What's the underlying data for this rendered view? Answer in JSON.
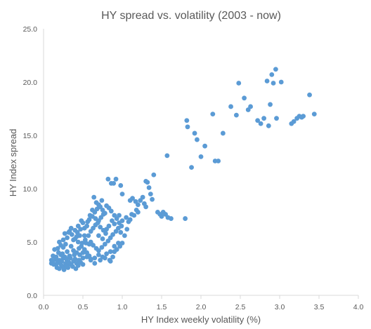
{
  "chart_data": {
    "type": "scatter",
    "title": "HY spread vs. volatility (2003 - now)",
    "xlabel": "HY Index weekly volatility (%)",
    "ylabel": "HY Index spread",
    "xlim": [
      0,
      4
    ],
    "ylim": [
      0,
      25
    ],
    "x_ticks": [
      "0.0",
      "0.5",
      "1.0",
      "1.5",
      "2.0",
      "2.5",
      "3.0",
      "3.5",
      "4.0"
    ],
    "y_ticks": [
      "0.0",
      "5.0",
      "10.0",
      "15.0",
      "20.0",
      "25.0"
    ],
    "grid": false,
    "legend": "none",
    "marker_color": "#5B9BD5",
    "series": [
      {
        "points": [
          [
            0.18,
            3.1
          ],
          [
            0.2,
            3.3
          ],
          [
            0.22,
            2.9
          ],
          [
            0.25,
            3.5
          ],
          [
            0.28,
            3.0
          ],
          [
            0.3,
            2.8
          ],
          [
            0.15,
            3.4
          ],
          [
            0.17,
            2.6
          ],
          [
            0.12,
            3.2
          ],
          [
            0.1,
            3.0
          ],
          [
            0.2,
            2.5
          ],
          [
            0.24,
            2.7
          ],
          [
            0.32,
            3.1
          ],
          [
            0.35,
            2.9
          ],
          [
            0.38,
            3.2
          ],
          [
            0.27,
            3.6
          ],
          [
            0.22,
            3.8
          ],
          [
            0.19,
            4.0
          ],
          [
            0.14,
            4.3
          ],
          [
            0.3,
            4.1
          ],
          [
            0.33,
            3.7
          ],
          [
            0.4,
            3.4
          ],
          [
            0.42,
            3.0
          ],
          [
            0.45,
            3.3
          ],
          [
            0.25,
            4.5
          ],
          [
            0.28,
            4.8
          ],
          [
            0.2,
            5.0
          ],
          [
            0.35,
            4.6
          ],
          [
            0.38,
            4.2
          ],
          [
            0.42,
            4.0
          ],
          [
            0.46,
            3.8
          ],
          [
            0.5,
            3.5
          ],
          [
            0.3,
            5.4
          ],
          [
            0.27,
            5.8
          ],
          [
            0.33,
            6.0
          ],
          [
            0.36,
            5.7
          ],
          [
            0.4,
            5.3
          ],
          [
            0.44,
            5.0
          ],
          [
            0.48,
            4.6
          ],
          [
            0.52,
            4.3
          ],
          [
            0.55,
            4.0
          ],
          [
            0.58,
            3.7
          ],
          [
            0.6,
            3.4
          ],
          [
            0.25,
            5.2
          ],
          [
            0.22,
            4.7
          ],
          [
            0.18,
            4.4
          ],
          [
            0.12,
            3.7
          ],
          [
            0.1,
            3.3
          ],
          [
            0.16,
            2.9
          ],
          [
            0.29,
            3.4
          ],
          [
            0.31,
            2.6
          ],
          [
            0.37,
            2.7
          ],
          [
            0.41,
            2.5
          ],
          [
            0.44,
            2.8
          ],
          [
            0.47,
            3.1
          ],
          [
            0.5,
            2.9
          ],
          [
            0.26,
            2.4
          ],
          [
            0.23,
            3.2
          ],
          [
            0.34,
            3.5
          ],
          [
            0.39,
            3.8
          ],
          [
            0.45,
            4.4
          ],
          [
            0.49,
            4.9
          ],
          [
            0.53,
            5.2
          ],
          [
            0.57,
            5.6
          ],
          [
            0.6,
            6.0
          ],
          [
            0.63,
            6.3
          ],
          [
            0.66,
            6.6
          ],
          [
            0.7,
            7.0
          ],
          [
            0.73,
            7.3
          ],
          [
            0.76,
            7.6
          ],
          [
            0.55,
            6.5
          ],
          [
            0.5,
            6.8
          ],
          [
            0.47,
            6.2
          ],
          [
            0.43,
            5.9
          ],
          [
            0.58,
            7.1
          ],
          [
            0.62,
            7.4
          ],
          [
            0.65,
            7.8
          ],
          [
            0.68,
            8.1
          ],
          [
            0.72,
            8.3
          ],
          [
            0.75,
            8.0
          ],
          [
            0.78,
            7.7
          ],
          [
            0.8,
            8.4
          ],
          [
            0.83,
            8.2
          ],
          [
            0.86,
            7.9
          ],
          [
            0.9,
            7.5
          ],
          [
            0.93,
            7.2
          ],
          [
            0.96,
            6.8
          ],
          [
            0.99,
            6.5
          ],
          [
            0.64,
            9.2
          ],
          [
            0.67,
            8.7
          ],
          [
            0.7,
            8.5
          ],
          [
            0.74,
            8.9
          ],
          [
            0.6,
            5.0
          ],
          [
            0.63,
            4.7
          ],
          [
            0.67,
            4.4
          ],
          [
            0.7,
            4.2
          ],
          [
            0.74,
            4.5
          ],
          [
            0.78,
            4.8
          ],
          [
            0.82,
            5.1
          ],
          [
            0.85,
            5.4
          ],
          [
            0.88,
            5.7
          ],
          [
            0.92,
            6.0
          ],
          [
            0.95,
            6.3
          ],
          [
            0.98,
            5.9
          ],
          [
            0.55,
            3.6
          ],
          [
            0.6,
            3.3
          ],
          [
            0.65,
            3.5
          ],
          [
            0.7,
            3.8
          ],
          [
            0.75,
            3.6
          ],
          [
            0.8,
            3.9
          ],
          [
            0.85,
            4.1
          ],
          [
            0.9,
            4.6
          ],
          [
            0.95,
            4.9
          ],
          [
            0.52,
            6.3
          ],
          [
            0.56,
            6.9
          ],
          [
            0.59,
            7.5
          ],
          [
            0.62,
            8.0
          ],
          [
            0.66,
            7.2
          ],
          [
            0.69,
            6.8
          ],
          [
            0.72,
            6.4
          ],
          [
            0.76,
            6.1
          ],
          [
            0.79,
            5.8
          ],
          [
            0.83,
            6.5
          ],
          [
            0.87,
            7.0
          ],
          [
            0.9,
            6.7
          ],
          [
            0.4,
            6.1
          ],
          [
            0.44,
            6.5
          ],
          [
            0.48,
            7.0
          ],
          [
            0.52,
            5.6
          ],
          [
            0.46,
            5.6
          ],
          [
            0.42,
            5.5
          ],
          [
            0.38,
            5.2
          ],
          [
            0.35,
            6.3
          ],
          [
            0.32,
            5.9
          ],
          [
            0.82,
            10.9
          ],
          [
            0.86,
            10.5
          ],
          [
            0.92,
            10.9
          ],
          [
            0.89,
            10.5
          ],
          [
            0.65,
            3.0
          ],
          [
            0.72,
            3.3
          ],
          [
            0.78,
            3.5
          ],
          [
            0.84,
            3.3
          ],
          [
            0.88,
            3.6
          ],
          [
            0.93,
            4.3
          ],
          [
            0.97,
            4.6
          ],
          [
            1.0,
            4.9
          ],
          [
            1.03,
            5.6
          ],
          [
            1.06,
            6.2
          ],
          [
            1.0,
            7.0
          ],
          [
            1.05,
            7.3
          ],
          [
            1.08,
            6.9
          ],
          [
            1.12,
            7.6
          ],
          [
            1.15,
            7.5
          ],
          [
            1.18,
            8.0
          ],
          [
            1.2,
            7.8
          ],
          [
            1.1,
            8.9
          ],
          [
            1.13,
            9.1
          ],
          [
            1.17,
            8.8
          ],
          [
            1.2,
            8.5
          ],
          [
            1.23,
            8.9
          ],
          [
            1.26,
            9.2
          ],
          [
            1.28,
            8.6
          ],
          [
            1.3,
            10.7
          ],
          [
            1.32,
            10.6
          ],
          [
            1.34,
            10.1
          ],
          [
            1.36,
            9.5
          ],
          [
            1.38,
            9.0
          ],
          [
            1.3,
            8.3
          ],
          [
            1.4,
            11.3
          ],
          [
            1.45,
            7.8
          ],
          [
            1.48,
            7.6
          ],
          [
            1.5,
            7.4
          ],
          [
            1.52,
            7.8
          ],
          [
            1.55,
            7.6
          ],
          [
            1.58,
            7.3
          ],
          [
            1.62,
            7.2
          ],
          [
            1.57,
            13.1
          ],
          [
            1.8,
            7.2
          ],
          [
            1.82,
            16.4
          ],
          [
            1.83,
            15.8
          ],
          [
            1.88,
            12.0
          ],
          [
            1.92,
            15.2
          ],
          [
            1.95,
            14.6
          ],
          [
            2.0,
            13.0
          ],
          [
            2.05,
            14.0
          ],
          [
            2.15,
            17.0
          ],
          [
            2.18,
            12.6
          ],
          [
            2.22,
            12.6
          ],
          [
            2.28,
            15.2
          ],
          [
            2.38,
            17.7
          ],
          [
            2.45,
            16.9
          ],
          [
            2.48,
            19.9
          ],
          [
            2.55,
            18.5
          ],
          [
            2.6,
            17.4
          ],
          [
            2.63,
            17.7
          ],
          [
            2.72,
            16.4
          ],
          [
            2.76,
            16.1
          ],
          [
            2.8,
            16.6
          ],
          [
            2.84,
            20.1
          ],
          [
            2.86,
            15.9
          ],
          [
            2.88,
            17.9
          ],
          [
            2.9,
            20.7
          ],
          [
            2.92,
            19.9
          ],
          [
            2.95,
            21.2
          ],
          [
            2.96,
            16.6
          ],
          [
            3.02,
            20.0
          ],
          [
            3.15,
            16.1
          ],
          [
            3.18,
            16.3
          ],
          [
            3.22,
            16.6
          ],
          [
            3.25,
            16.8
          ],
          [
            3.28,
            16.7
          ],
          [
            3.3,
            16.8
          ],
          [
            3.38,
            18.8
          ],
          [
            3.44,
            17.0
          ],
          [
            1.1,
            7.1
          ],
          [
            1.0,
            9.5
          ],
          [
            0.98,
            10.3
          ],
          [
            0.96,
            7.5
          ],
          [
            0.9,
            4.1
          ],
          [
            0.85,
            3.2
          ],
          [
            0.7,
            5.6
          ],
          [
            0.75,
            5.3
          ],
          [
            0.8,
            6.2
          ],
          [
            0.58,
            4.8
          ],
          [
            0.54,
            4.9
          ],
          [
            0.5,
            4.0
          ],
          [
            0.16,
            3.6
          ],
          [
            0.13,
            2.9
          ],
          [
            0.24,
            3.9
          ],
          [
            0.29,
            2.7
          ]
        ]
      }
    ]
  }
}
